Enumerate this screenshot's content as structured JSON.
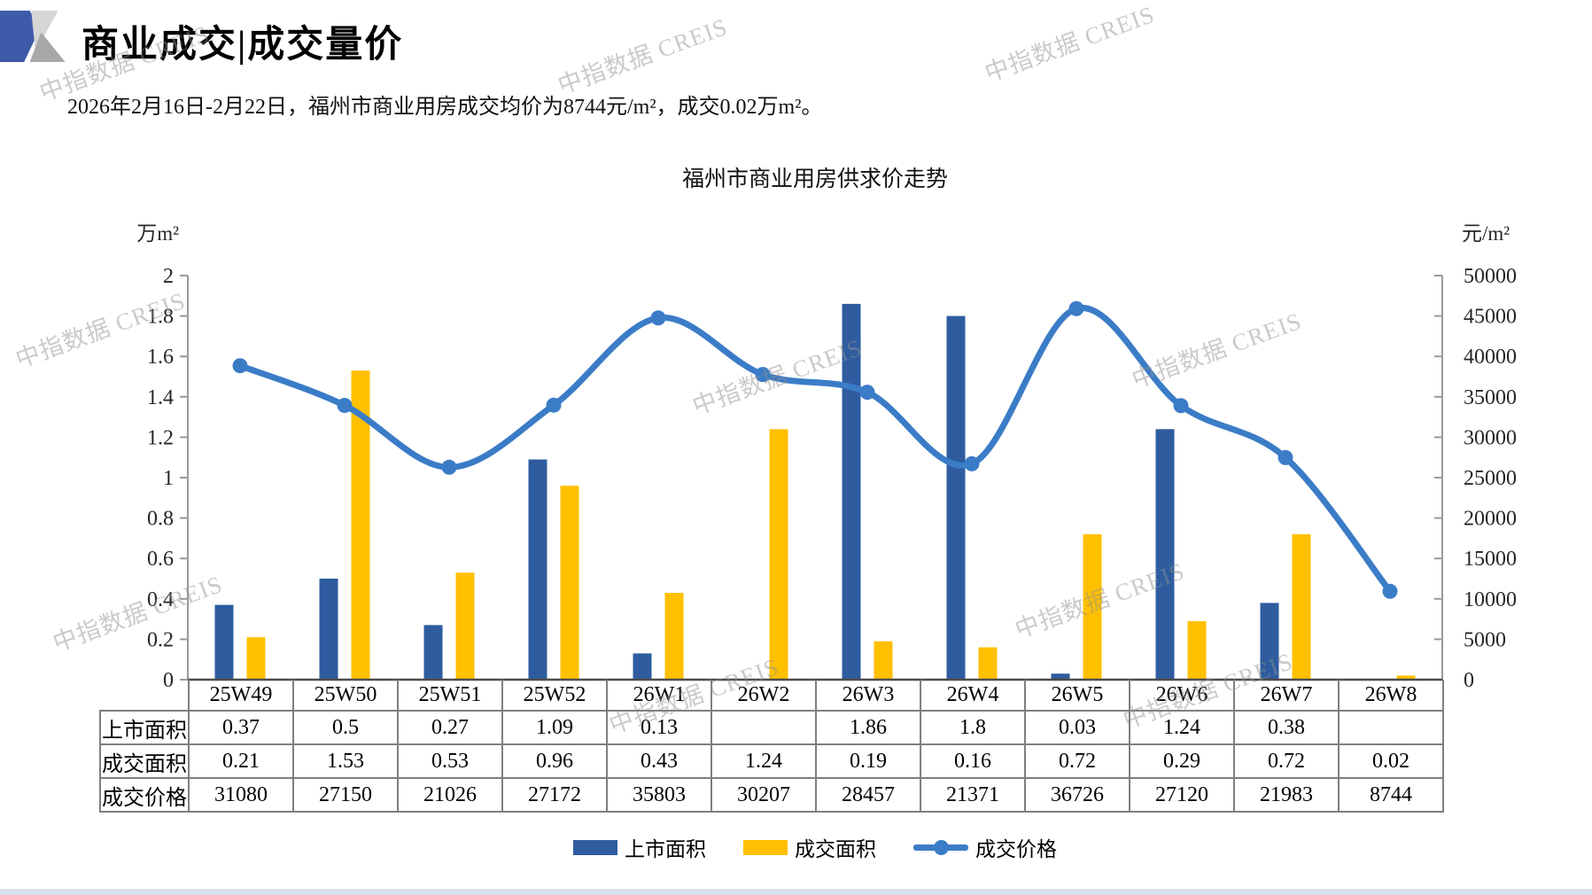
{
  "page": {
    "title": "商业成交|成交量价",
    "subtitle": "2026年2月16日-2月22日，福州市商业用房成交均价为8744元/m²，成交0.02万m²。",
    "watermark_text": "中指数据 CREIS",
    "footer_color": "#D8E2F0"
  },
  "chart_data": {
    "type": "combo",
    "title": "福州市商业用房供求价走势",
    "categories": [
      "25W49",
      "25W50",
      "25W51",
      "25W52",
      "26W1",
      "26W2",
      "26W3",
      "26W4",
      "26W5",
      "26W6",
      "26W7",
      "26W8"
    ],
    "series": [
      {
        "name": "上市面积",
        "type": "bar",
        "axis": "left",
        "color": "#2E5C9F",
        "values": [
          0.37,
          0.5,
          0.27,
          1.09,
          0.13,
          null,
          1.86,
          1.8,
          0.03,
          1.24,
          0.38,
          null
        ]
      },
      {
        "name": "成交面积",
        "type": "bar",
        "axis": "left",
        "color": "#FFC000",
        "values": [
          0.21,
          1.53,
          0.53,
          0.96,
          0.43,
          1.24,
          0.19,
          0.16,
          0.72,
          0.29,
          0.72,
          0.02
        ]
      },
      {
        "name": "成交价格",
        "type": "line",
        "axis": "right",
        "color": "#3B7CC7",
        "values": [
          31080,
          27150,
          21026,
          27172,
          35803,
          30207,
          28457,
          21371,
          36726,
          27120,
          21983,
          8744
        ]
      }
    ],
    "left_axis": {
      "unit": "万m²",
      "min": 0,
      "max": 2,
      "step": 0.2
    },
    "right_axis": {
      "unit": "元/m²",
      "min": 0,
      "max": 40000,
      "step": 5000
    },
    "legend_position": "bottom",
    "grid": false,
    "line_smooth": true
  },
  "table": {
    "corner_label": "",
    "columns": [
      "25W49",
      "25W50",
      "25W51",
      "25W52",
      "26W1",
      "26W2",
      "26W3",
      "26W4",
      "26W5",
      "26W6",
      "26W7",
      "26W8"
    ],
    "row_labels": [
      "上市面积",
      "成交面积",
      "成交价格"
    ],
    "rows": [
      [
        "0.37",
        "0.5",
        "0.27",
        "1.09",
        "0.13",
        "",
        "1.86",
        "1.8",
        "0.03",
        "1.24",
        "0.38",
        ""
      ],
      [
        "0.21",
        "1.53",
        "0.53",
        "0.96",
        "0.43",
        "1.24",
        "0.19",
        "0.16",
        "0.72",
        "0.29",
        "0.72",
        "0.02"
      ],
      [
        "31080",
        "27150",
        "21026",
        "27172",
        "35803",
        "30207",
        "28457",
        "21371",
        "36726",
        "27120",
        "21983",
        "8744"
      ]
    ]
  }
}
